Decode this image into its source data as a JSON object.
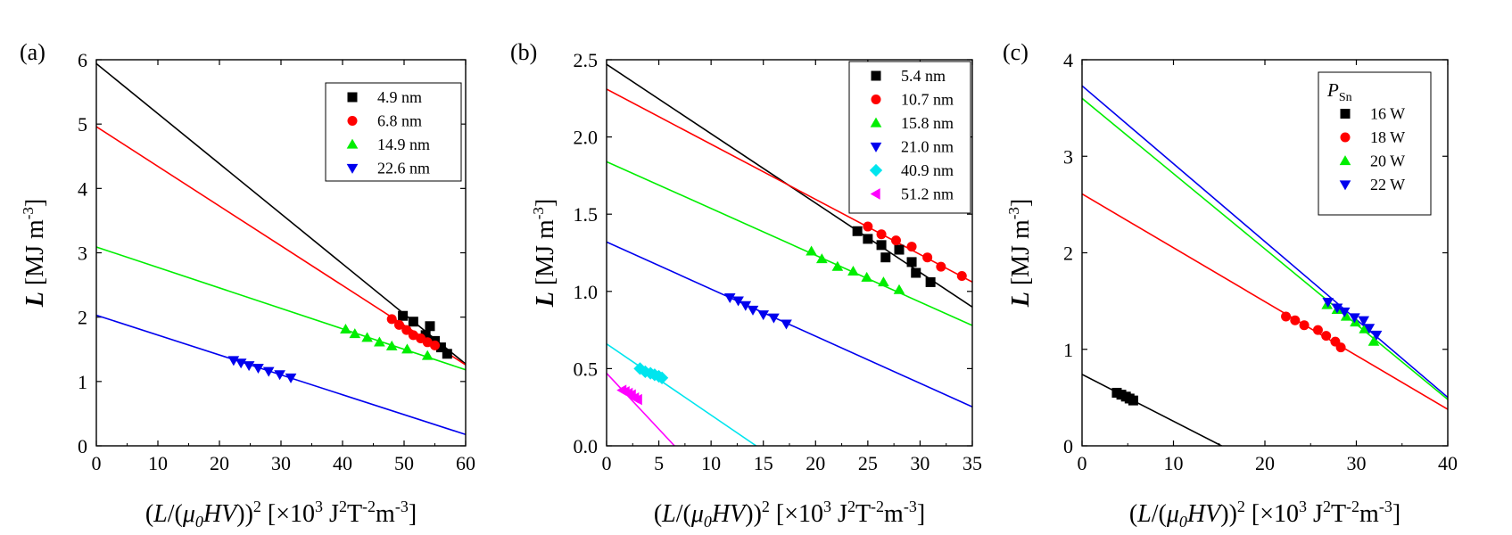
{
  "figure": {
    "xlabel_main": "(L/(μ0HV))",
    "xlabel_unit": " [×10³ J²T⁻²m⁻³]"
  },
  "chart_data": [
    {
      "type": "scatter",
      "panel_label": "(a)",
      "ylabel": "L [MJ m-3]",
      "xlabel": "(L/(μ0HV))^2 [×10^3 J^2T^-2m^-3]",
      "xlim": [
        0,
        60
      ],
      "ylim": [
        0,
        6
      ],
      "xticks": [
        "0",
        "10",
        "20",
        "30",
        "40",
        "50",
        "60"
      ],
      "yticks": [
        "0",
        "1",
        "2",
        "3",
        "4",
        "5",
        "6"
      ],
      "legend_title": "",
      "series": [
        {
          "name": "4.9 nm",
          "color": "#000000",
          "marker": "square",
          "x": [
            49.8,
            51.5,
            53.5,
            54.2,
            55.0,
            56.0,
            57.0
          ],
          "y": [
            2.02,
            1.93,
            1.72,
            1.86,
            1.63,
            1.53,
            1.43
          ],
          "fit": {
            "intercept": 5.94,
            "slope": -0.0778,
            "x_end": 60
          }
        },
        {
          "name": "6.8 nm",
          "color": "#ff0000",
          "marker": "circle",
          "x": [
            48.0,
            49.2,
            50.4,
            51.5,
            52.7,
            53.8,
            55.0
          ],
          "y": [
            1.97,
            1.88,
            1.8,
            1.72,
            1.67,
            1.61,
            1.56
          ],
          "fit": {
            "intercept": 4.96,
            "slope": -0.0617,
            "x_end": 60
          }
        },
        {
          "name": "14.9 nm",
          "color": "#00ee00",
          "marker": "triangle-up",
          "x": [
            40.5,
            42.0,
            44.0,
            46.0,
            48.0,
            50.5,
            53.8
          ],
          "y": [
            1.81,
            1.74,
            1.68,
            1.61,
            1.55,
            1.5,
            1.4
          ],
          "fit": {
            "intercept": 3.09,
            "slope": -0.0318,
            "x_end": 60
          }
        },
        {
          "name": "22.6 nm",
          "color": "#0000ee",
          "marker": "triangle-down",
          "x": [
            22.3,
            23.5,
            24.8,
            26.3,
            28.0,
            29.8,
            31.6
          ],
          "y": [
            1.33,
            1.29,
            1.25,
            1.21,
            1.16,
            1.11,
            1.06
          ],
          "fit": {
            "intercept": 2.03,
            "slope": -0.0309,
            "x_end": 60
          }
        }
      ]
    },
    {
      "type": "scatter",
      "panel_label": "(b)",
      "ylabel": "L [MJ m-3]",
      "xlabel": "(L/(μ0HV))^2 [×10^3 J^2T^-2m^-3]",
      "xlim": [
        0,
        35
      ],
      "ylim": [
        0,
        2.5
      ],
      "xticks": [
        "0",
        "5",
        "10",
        "15",
        "20",
        "25",
        "30",
        "35"
      ],
      "yticks": [
        "0.0",
        "0.5",
        "1.0",
        "1.5",
        "2.0",
        "2.5"
      ],
      "legend_title": "",
      "series": [
        {
          "name": "5.4 nm",
          "color": "#000000",
          "marker": "square",
          "x": [
            24.0,
            25.0,
            26.3,
            26.7,
            28.0,
            29.2,
            29.6,
            31.0
          ],
          "y": [
            1.39,
            1.34,
            1.3,
            1.22,
            1.27,
            1.19,
            1.12,
            1.06
          ],
          "fit": {
            "intercept": 2.47,
            "slope": -0.0449,
            "x_end": 35
          }
        },
        {
          "name": "10.7 nm",
          "color": "#ff0000",
          "marker": "circle",
          "x": [
            25.0,
            26.3,
            27.7,
            29.2,
            30.7,
            32.0,
            34.0
          ],
          "y": [
            1.42,
            1.37,
            1.33,
            1.29,
            1.22,
            1.16,
            1.1
          ],
          "fit": {
            "intercept": 2.31,
            "slope": -0.0357,
            "x_end": 35
          }
        },
        {
          "name": "15.8 nm",
          "color": "#00ee00",
          "marker": "triangle-up",
          "x": [
            19.6,
            20.6,
            22.1,
            23.6,
            24.9,
            26.5,
            28.0
          ],
          "y": [
            1.26,
            1.21,
            1.16,
            1.13,
            1.09,
            1.06,
            1.01
          ],
          "fit": {
            "intercept": 1.84,
            "slope": -0.0303,
            "x_end": 35
          }
        },
        {
          "name": "21.0 nm",
          "color": "#0000ee",
          "marker": "triangle-down",
          "x": [
            11.8,
            12.6,
            13.3,
            14.0,
            15.0,
            16.0,
            17.2
          ],
          "y": [
            0.96,
            0.94,
            0.91,
            0.88,
            0.85,
            0.83,
            0.79
          ],
          "fit": {
            "intercept": 1.32,
            "slope": -0.0305,
            "x_end": 35
          }
        },
        {
          "name": "40.9 nm",
          "color": "#00e5ee",
          "marker": "diamond",
          "x": [
            3.2,
            3.7,
            4.2,
            4.6,
            5.0,
            5.3
          ],
          "y": [
            0.5,
            0.48,
            0.47,
            0.46,
            0.45,
            0.44
          ],
          "fit": {
            "intercept": 0.66,
            "slope": -0.0461,
            "x_end": 14.3
          }
        },
        {
          "name": "51.2 nm",
          "color": "#ff00ff",
          "marker": "triangle-left",
          "x": [
            1.5,
            1.8,
            2.1,
            2.4,
            2.7,
            3.0
          ],
          "y": [
            0.36,
            0.35,
            0.34,
            0.33,
            0.31,
            0.3
          ],
          "fit": {
            "intercept": 0.47,
            "slope": -0.0723,
            "x_end": 6.5
          }
        }
      ]
    },
    {
      "type": "scatter",
      "panel_label": "(c)",
      "ylabel": "L [MJ m-3]",
      "xlabel": "(L/(μ0HV))^2 [×10^3 J^2T^-2m^-3]",
      "xlim": [
        0,
        40
      ],
      "ylim": [
        0,
        4
      ],
      "xticks": [
        "0",
        "10",
        "20",
        "30",
        "40"
      ],
      "yticks": [
        "0",
        "1",
        "2",
        "3",
        "4"
      ],
      "legend_title": "P_Sn",
      "series": [
        {
          "name": "16 W",
          "color": "#000000",
          "marker": "square",
          "x": [
            3.8,
            4.3,
            4.8,
            5.2,
            5.6
          ],
          "y": [
            0.55,
            0.53,
            0.51,
            0.49,
            0.47
          ],
          "fit": {
            "intercept": 0.74,
            "slope": -0.0485,
            "x_end": 15.3
          }
        },
        {
          "name": "18 W",
          "color": "#ff0000",
          "marker": "circle",
          "x": [
            22.3,
            23.3,
            24.3,
            25.8,
            26.7,
            27.7,
            28.3
          ],
          "y": [
            1.34,
            1.3,
            1.25,
            1.2,
            1.14,
            1.08,
            1.02
          ],
          "fit": {
            "intercept": 2.61,
            "slope": -0.0558,
            "x_end": 40
          }
        },
        {
          "name": "20 W",
          "color": "#00ee00",
          "marker": "triangle-up",
          "x": [
            26.8,
            27.9,
            28.9,
            29.9,
            30.9,
            31.9
          ],
          "y": [
            1.46,
            1.41,
            1.34,
            1.28,
            1.21,
            1.08
          ],
          "fit": {
            "intercept": 3.6,
            "slope": -0.078,
            "x_end": 40
          }
        },
        {
          "name": "22 W",
          "color": "#0000ee",
          "marker": "triangle-down",
          "x": [
            26.9,
            27.9,
            28.7,
            29.8,
            30.8,
            31.4,
            32.2
          ],
          "y": [
            1.49,
            1.43,
            1.39,
            1.33,
            1.3,
            1.22,
            1.15
          ],
          "fit": {
            "intercept": 3.73,
            "slope": -0.0807,
            "x_end": 40
          }
        }
      ]
    }
  ]
}
